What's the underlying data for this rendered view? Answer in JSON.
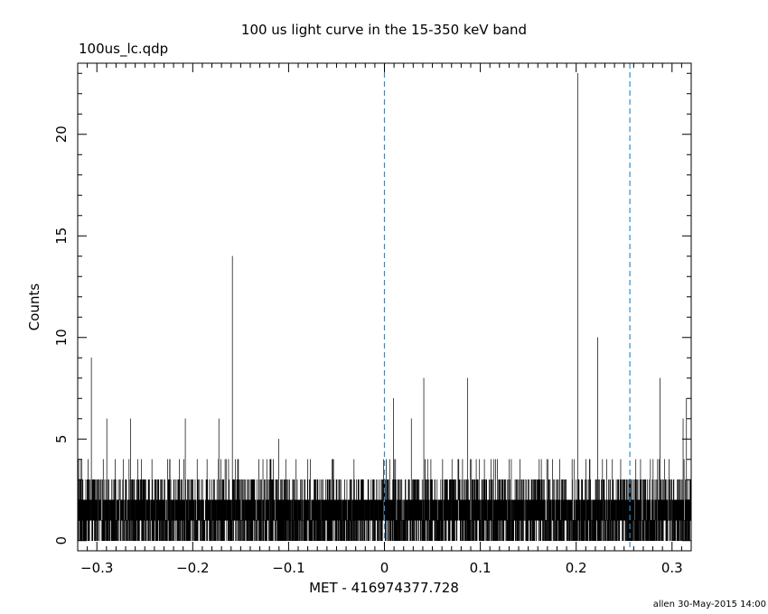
{
  "chart_data": {
    "type": "line",
    "title": "100 us light curve in the 15-350 keV band",
    "file_label": "100us_lc.qdp",
    "xlabel": "MET - 416974377.728",
    "ylabel": "Counts",
    "footer": "allen 30-May-2015 14:00",
    "xlim": [
      -0.32,
      0.32
    ],
    "ylim": [
      -0.5,
      23.5
    ],
    "x_ticks": [
      -0.3,
      -0.2,
      -0.1,
      0,
      0.1,
      0.2,
      0.3
    ],
    "x_tick_labels": [
      "−0.3",
      "−0.2",
      "−0.1",
      "0",
      "0.1",
      "0.2",
      "0.3"
    ],
    "y_ticks": [
      0,
      5,
      10,
      15,
      20
    ],
    "y_tick_labels": [
      "0",
      "5",
      "10",
      "15",
      "20"
    ],
    "bin_width": 0.0001,
    "baseline_counts_range": [
      0,
      3
    ],
    "series": [],
    "peaks": [
      {
        "x": -0.3058,
        "y": 9
      },
      {
        "x": -0.2897,
        "y": 6
      },
      {
        "x": -0.2649,
        "y": 6
      },
      {
        "x": -0.2078,
        "y": 6
      },
      {
        "x": -0.1728,
        "y": 6
      },
      {
        "x": -0.1587,
        "y": 14
      },
      {
        "x": -0.1103,
        "y": 5
      },
      {
        "x": 0.0095,
        "y": 7
      },
      {
        "x": 0.028,
        "y": 6
      },
      {
        "x": 0.041,
        "y": 8
      },
      {
        "x": 0.0865,
        "y": 8
      },
      {
        "x": 0.2015,
        "y": 23
      },
      {
        "x": 0.2224,
        "y": 10
      },
      {
        "x": 0.2875,
        "y": 8
      },
      {
        "x": 0.3115,
        "y": 6
      },
      {
        "x": 0.315,
        "y": 7
      }
    ],
    "vlines": [
      {
        "x": 0.0,
        "color": "#2a8fd6",
        "style": "dashed"
      },
      {
        "x": 0.256,
        "color": "#2a8fd6",
        "style": "dashed"
      }
    ],
    "grid": false,
    "legend": "none",
    "line_color": "#000000"
  }
}
